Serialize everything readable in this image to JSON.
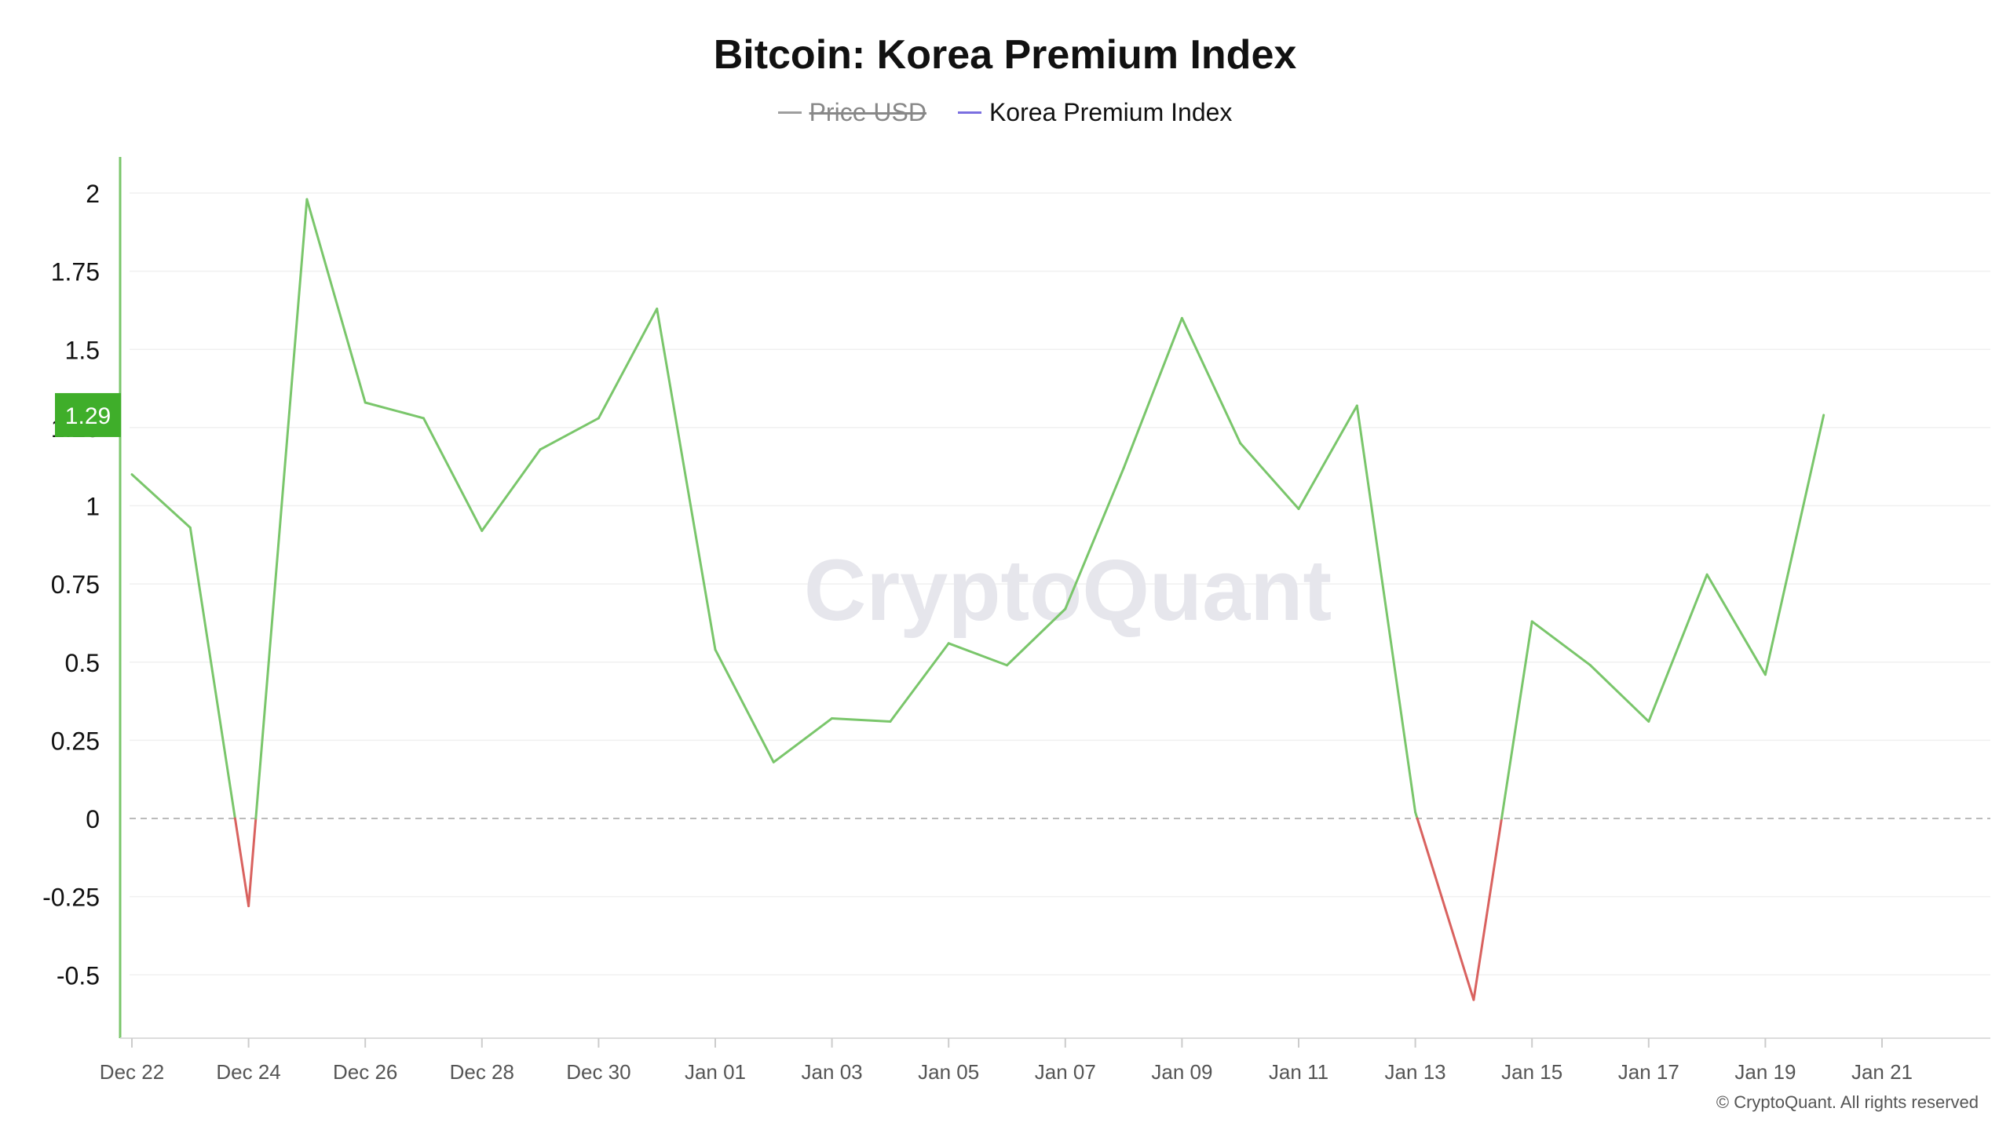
{
  "title": "Bitcoin: Korea Premium Index",
  "legend": [
    {
      "name": "Price USD",
      "color": "#9e9e9e",
      "disabled": true
    },
    {
      "name": "Korea Premium Index",
      "color": "#7b6fe0",
      "disabled": false
    }
  ],
  "watermark": "CryptoQuant",
  "copyright": "© CryptoQuant. All rights reserved",
  "current_value_label": "1.29",
  "colors": {
    "positive": "#7ac66b",
    "negative": "#d9625f",
    "axis": "#7ac66b",
    "badge": "#3fae2a"
  },
  "chart_data": {
    "type": "line",
    "title": "Bitcoin: Korea Premium Index",
    "x": [
      "Dec 22",
      "Dec 23",
      "Dec 24",
      "Dec 25",
      "Dec 26",
      "Dec 27",
      "Dec 28",
      "Dec 29",
      "Dec 30",
      "Dec 31",
      "Jan 01",
      "Jan 02",
      "Jan 03",
      "Jan 04",
      "Jan 05",
      "Jan 06",
      "Jan 07",
      "Jan 08",
      "Jan 09",
      "Jan 10",
      "Jan 11",
      "Jan 12",
      "Jan 13",
      "Jan 14",
      "Jan 15",
      "Jan 16",
      "Jan 17",
      "Jan 18",
      "Jan 19",
      "Jan 20"
    ],
    "series": [
      {
        "name": "Korea Premium Index",
        "values": [
          1.1,
          0.93,
          -0.28,
          1.98,
          1.33,
          1.28,
          0.92,
          1.18,
          1.28,
          1.63,
          0.54,
          0.18,
          0.32,
          0.31,
          0.56,
          0.49,
          0.67,
          1.12,
          1.6,
          1.2,
          0.99,
          1.32,
          0.02,
          -0.58,
          0.63,
          0.49,
          0.31,
          0.78,
          0.46,
          1.29
        ]
      }
    ],
    "x_tick_labels": [
      "Dec 22",
      "Dec 24",
      "Dec 26",
      "Dec 28",
      "Dec 30",
      "Jan 01",
      "Jan 03",
      "Jan 05",
      "Jan 07",
      "Jan 09",
      "Jan 11",
      "Jan 13",
      "Jan 15",
      "Jan 17",
      "Jan 19",
      "Jan 21"
    ],
    "y_ticks": [
      -0.5,
      -0.25,
      0,
      0.25,
      0.5,
      0.75,
      1,
      1.25,
      1.5,
      1.75,
      2
    ],
    "y_tick_labels": [
      "-0.5",
      "-0.25",
      "0",
      "0.25",
      "0.5",
      "0.75",
      "1",
      "1.25",
      "1.5",
      "1.75",
      "2"
    ],
    "ylim": [
      -0.7,
      2.1
    ],
    "x_range_days": 32,
    "grid": true
  }
}
